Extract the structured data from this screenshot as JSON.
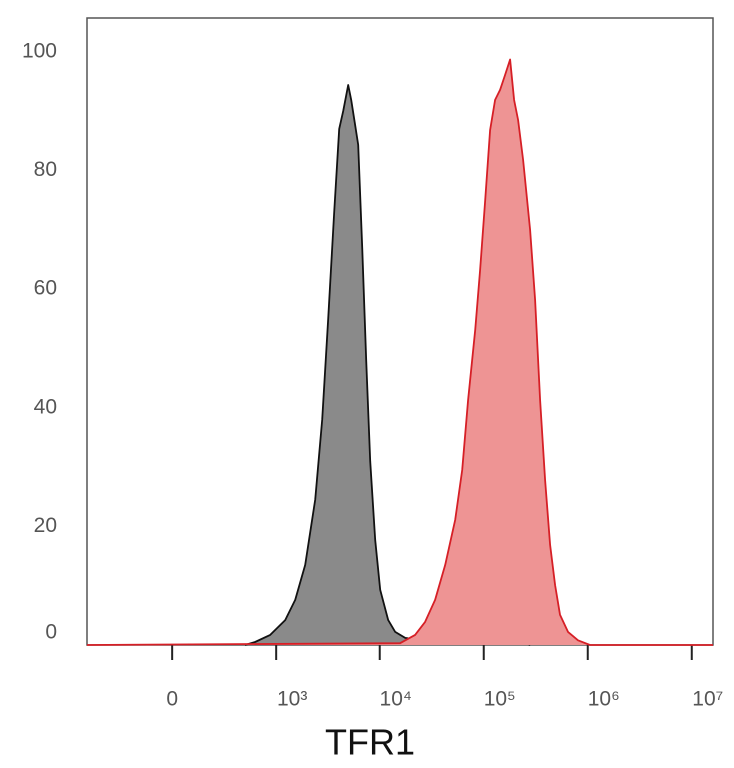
{
  "chart_data": {
    "type": "area",
    "x_label": "TFR1",
    "xscale": "biexponential",
    "xlim": [
      -650,
      16000000
    ],
    "ylim": [
      0,
      105.7
    ],
    "xticks": [
      0,
      {
        "value": 1000,
        "label": "10³"
      },
      {
        "value": 10000,
        "label": "10⁴"
      },
      {
        "value": 100000,
        "label": "10⁵"
      },
      {
        "value": 1000000,
        "label": "10⁶"
      },
      {
        "value": 10000000,
        "label": "10⁷"
      }
    ],
    "yticks": [
      0,
      20,
      40,
      60,
      80,
      100
    ],
    "series": [
      {
        "name": null,
        "color": "#8a8a8a",
        "line_color": "#111111",
        "x": [
          487,
          618,
          873,
          1224,
          1531,
          1915,
          2392,
          2794,
          3192,
          3646,
          4070,
          4450,
          4970,
          5310,
          5800,
          6200,
          6790,
          7410,
          8100,
          9050,
          10100,
          12060,
          14080,
          17570,
          24500,
          59400,
          251000,
          280000
        ],
        "values": [
          0,
          0.5,
          1.7,
          4.2,
          7.6,
          13.5,
          24.5,
          38,
          55,
          73,
          87,
          90,
          94.4,
          91.9,
          87.7,
          84.3,
          66.6,
          48,
          31,
          17.7,
          9.3,
          4.2,
          2.2,
          1.2,
          0.8,
          0.7,
          0.3,
          0
        ]
      },
      {
        "name": null,
        "color": "#ee9494",
        "line_color": "#d61f26",
        "x": [
          -650,
          15700,
          21900,
          27300,
          34100,
          42600,
          53100,
          62000,
          70800,
          82700,
          92300,
          103200,
          115200,
          128700,
          143700,
          160400,
          179100,
          195700,
          213900,
          239000,
          279000,
          311700,
          348000,
          388600,
          434000,
          484800,
          541000,
          646000,
          806000,
          1052000,
          1175000,
          16000000
        ],
        "values": [
          0,
          0.3,
          1.7,
          3.9,
          7.6,
          13.5,
          21.1,
          29.5,
          41.3,
          53.1,
          63.2,
          75.0,
          86.8,
          91.9,
          93.6,
          96.1,
          98.7,
          91.9,
          88.5,
          81.8,
          70.0,
          58.2,
          41.3,
          27.8,
          16.9,
          10.1,
          5.1,
          2.2,
          0.8,
          0,
          0,
          0
        ]
      }
    ]
  }
}
